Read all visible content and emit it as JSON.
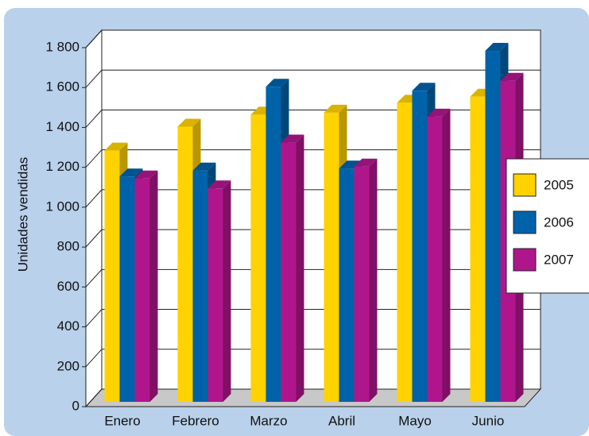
{
  "chart_data": {
    "type": "bar3d",
    "y_label": "Unidades vendidas",
    "categories": [
      "Enero",
      "Febrero",
      "Marzo",
      "Abril",
      "Mayo",
      "Junio"
    ],
    "series": [
      {
        "name": "2005",
        "color": "#ffd200",
        "values": [
          1260,
          1380,
          1440,
          1450,
          1500,
          1530
        ]
      },
      {
        "name": "2006",
        "color": "#0062a8",
        "values": [
          1130,
          1160,
          1580,
          1170,
          1560,
          1760
        ]
      },
      {
        "name": "2007",
        "color": "#b0168c",
        "values": [
          1120,
          1070,
          1300,
          1180,
          1430,
          1610
        ]
      }
    ],
    "ylim": [
      0,
      1800
    ],
    "yticks": [
      0,
      200,
      400,
      600,
      800,
      {
        "value": 1000,
        "label": "1 000"
      },
      {
        "value": 1200,
        "label": "1 200"
      },
      {
        "value": 1400,
        "label": "1 400"
      },
      {
        "value": 1600,
        "label": "1 600"
      },
      {
        "value": 1800,
        "label": "1 800"
      }
    ],
    "grid": true,
    "legend": "right"
  }
}
